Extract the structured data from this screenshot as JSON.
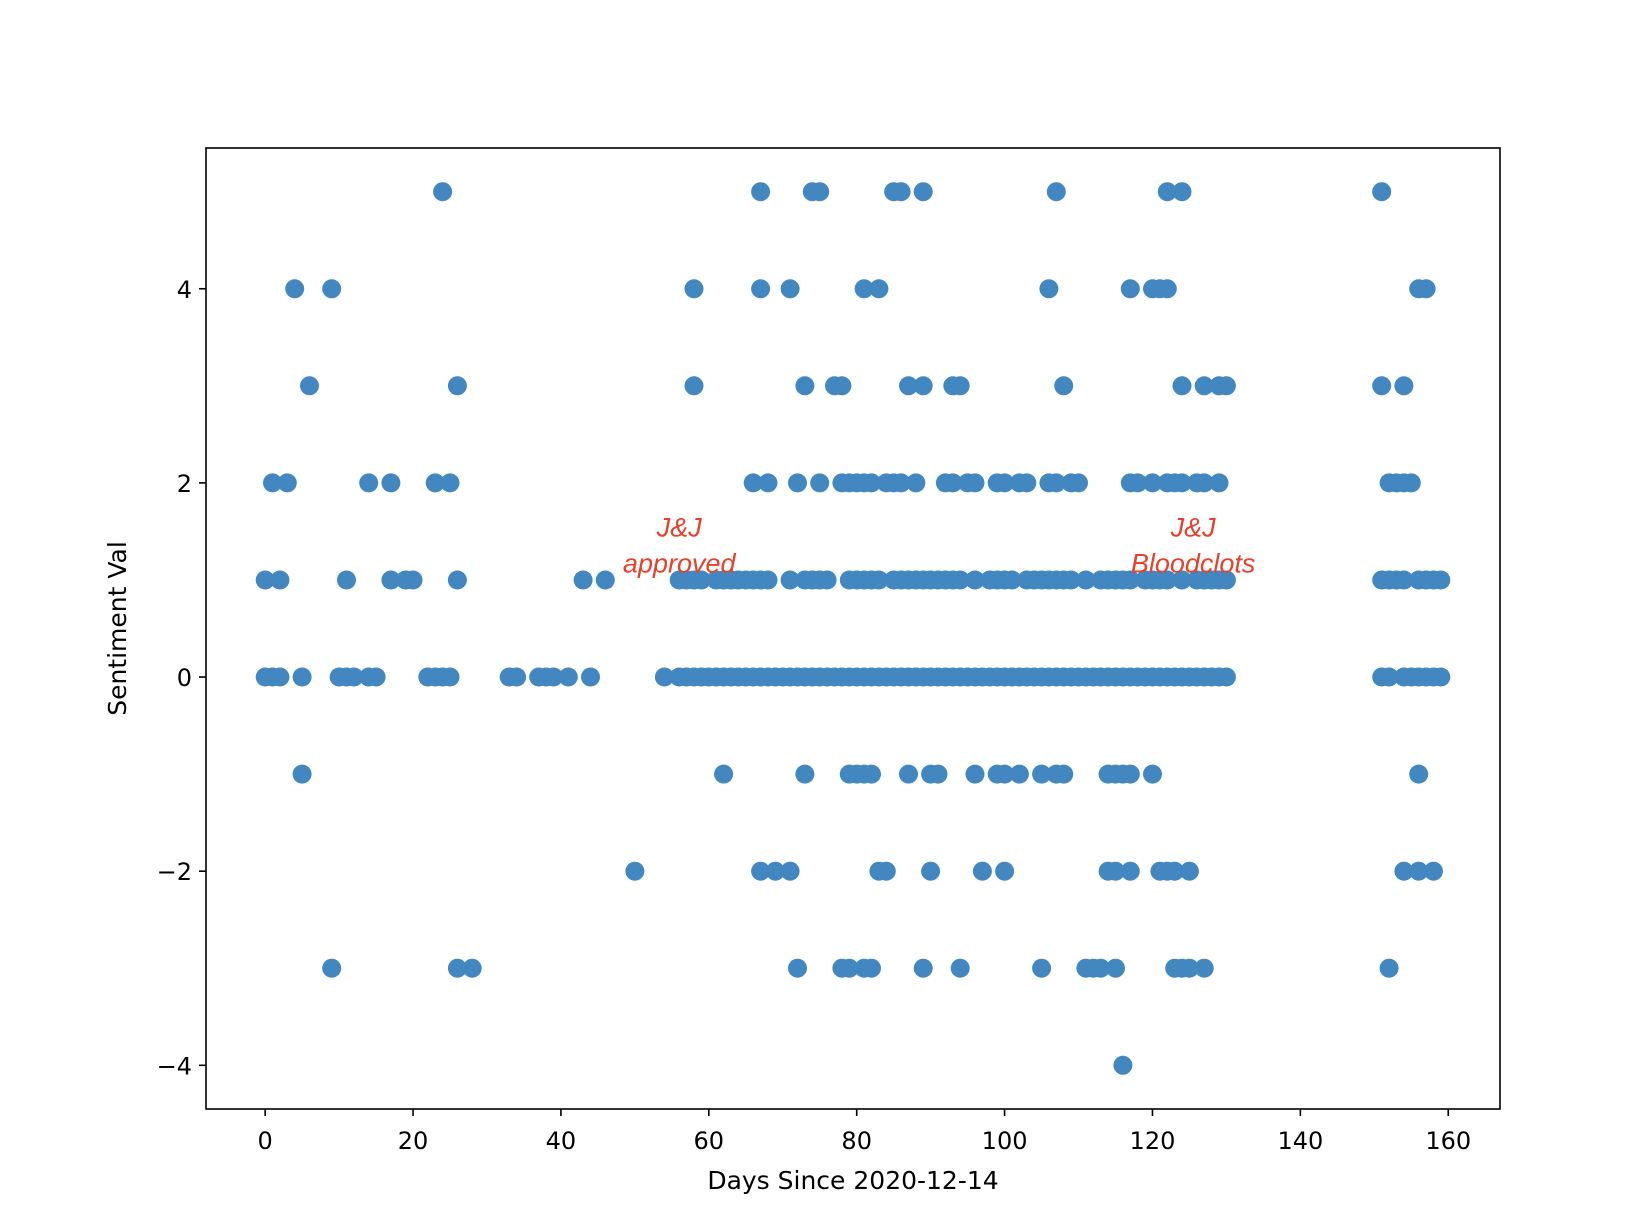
{
  "chart_data": {
    "type": "scatter",
    "title": "",
    "xlabel": "Days Since 2020-12-14",
    "ylabel": "Sentiment Val",
    "xlim": [
      -8,
      167
    ],
    "ylim": [
      -4.45,
      5.45
    ],
    "xticks": [
      0,
      20,
      40,
      60,
      80,
      100,
      120,
      140,
      160
    ],
    "xtick_labels": [
      "0",
      "20",
      "40",
      "60",
      "80",
      "100",
      "120",
      "140",
      "160"
    ],
    "yticks": [
      -4,
      -2,
      0,
      2,
      4
    ],
    "ytick_labels": [
      "−4",
      "−2",
      "0",
      "2",
      "4"
    ],
    "grid": false,
    "marker_color": "#4287c0",
    "annotation_color": "#e8402a",
    "annotations": [
      {
        "lines": [
          "J&J",
          "approved"
        ],
        "x": 56,
        "y": 1.45
      },
      {
        "lines": [
          "J&J",
          "Bloodclots"
        ],
        "x": 125.5,
        "y": 1.45
      }
    ],
    "points": [
      [
        24,
        5
      ],
      [
        67,
        5
      ],
      [
        74,
        5
      ],
      [
        75,
        5
      ],
      [
        85,
        5
      ],
      [
        86,
        5
      ],
      [
        89,
        5
      ],
      [
        107,
        5
      ],
      [
        122,
        5
      ],
      [
        124,
        5
      ],
      [
        151,
        5
      ],
      [
        4,
        4
      ],
      [
        9,
        4
      ],
      [
        58,
        4
      ],
      [
        67,
        4
      ],
      [
        71,
        4
      ],
      [
        81,
        4
      ],
      [
        83,
        4
      ],
      [
        106,
        4
      ],
      [
        117,
        4
      ],
      [
        120,
        4
      ],
      [
        121,
        4
      ],
      [
        122,
        4
      ],
      [
        156,
        4
      ],
      [
        157,
        4
      ],
      [
        6,
        3
      ],
      [
        26,
        3
      ],
      [
        58,
        3
      ],
      [
        73,
        3
      ],
      [
        77,
        3
      ],
      [
        78,
        3
      ],
      [
        87,
        3
      ],
      [
        89,
        3
      ],
      [
        93,
        3
      ],
      [
        94,
        3
      ],
      [
        108,
        3
      ],
      [
        124,
        3
      ],
      [
        127,
        3
      ],
      [
        129,
        3
      ],
      [
        130,
        3
      ],
      [
        151,
        3
      ],
      [
        154,
        3
      ],
      [
        1,
        2
      ],
      [
        3,
        2
      ],
      [
        14,
        2
      ],
      [
        17,
        2
      ],
      [
        23,
        2
      ],
      [
        25,
        2
      ],
      [
        66,
        2
      ],
      [
        68,
        2
      ],
      [
        72,
        2
      ],
      [
        75,
        2
      ],
      [
        78,
        2
      ],
      [
        79,
        2
      ],
      [
        80,
        2
      ],
      [
        81,
        2
      ],
      [
        82,
        2
      ],
      [
        84,
        2
      ],
      [
        85,
        2
      ],
      [
        86,
        2
      ],
      [
        88,
        2
      ],
      [
        92,
        2
      ],
      [
        93,
        2
      ],
      [
        95,
        2
      ],
      [
        96,
        2
      ],
      [
        99,
        2
      ],
      [
        100,
        2
      ],
      [
        102,
        2
      ],
      [
        103,
        2
      ],
      [
        106,
        2
      ],
      [
        107,
        2
      ],
      [
        109,
        2
      ],
      [
        110,
        2
      ],
      [
        117,
        2
      ],
      [
        118,
        2
      ],
      [
        120,
        2
      ],
      [
        122,
        2
      ],
      [
        123,
        2
      ],
      [
        124,
        2
      ],
      [
        126,
        2
      ],
      [
        127,
        2
      ],
      [
        129,
        2
      ],
      [
        152,
        2
      ],
      [
        153,
        2
      ],
      [
        154,
        2
      ],
      [
        155,
        2
      ],
      [
        0,
        1
      ],
      [
        2,
        1
      ],
      [
        11,
        1
      ],
      [
        17,
        1
      ],
      [
        19,
        1
      ],
      [
        20,
        1
      ],
      [
        26,
        1
      ],
      [
        43,
        1
      ],
      [
        46,
        1
      ],
      [
        56,
        1
      ],
      [
        57,
        1
      ],
      [
        58,
        1
      ],
      [
        59,
        1
      ],
      [
        61,
        1
      ],
      [
        62,
        1
      ],
      [
        63,
        1
      ],
      [
        64,
        1
      ],
      [
        65,
        1
      ],
      [
        66,
        1
      ],
      [
        67,
        1
      ],
      [
        68,
        1
      ],
      [
        71,
        1
      ],
      [
        73,
        1
      ],
      [
        74,
        1
      ],
      [
        75,
        1
      ],
      [
        76,
        1
      ],
      [
        79,
        1
      ],
      [
        80,
        1
      ],
      [
        81,
        1
      ],
      [
        82,
        1
      ],
      [
        83,
        1
      ],
      [
        85,
        1
      ],
      [
        86,
        1
      ],
      [
        87,
        1
      ],
      [
        88,
        1
      ],
      [
        89,
        1
      ],
      [
        90,
        1
      ],
      [
        91,
        1
      ],
      [
        92,
        1
      ],
      [
        93,
        1
      ],
      [
        94,
        1
      ],
      [
        96,
        1
      ],
      [
        98,
        1
      ],
      [
        99,
        1
      ],
      [
        100,
        1
      ],
      [
        101,
        1
      ],
      [
        103,
        1
      ],
      [
        104,
        1
      ],
      [
        105,
        1
      ],
      [
        106,
        1
      ],
      [
        107,
        1
      ],
      [
        108,
        1
      ],
      [
        109,
        1
      ],
      [
        111,
        1
      ],
      [
        113,
        1
      ],
      [
        114,
        1
      ],
      [
        115,
        1
      ],
      [
        116,
        1
      ],
      [
        117,
        1
      ],
      [
        119,
        1
      ],
      [
        120,
        1
      ],
      [
        121,
        1
      ],
      [
        122,
        1
      ],
      [
        124,
        1
      ],
      [
        126,
        1
      ],
      [
        127,
        1
      ],
      [
        128,
        1
      ],
      [
        129,
        1
      ],
      [
        130,
        1
      ],
      [
        151,
        1
      ],
      [
        152,
        1
      ],
      [
        153,
        1
      ],
      [
        154,
        1
      ],
      [
        156,
        1
      ],
      [
        157,
        1
      ],
      [
        158,
        1
      ],
      [
        159,
        1
      ],
      [
        0,
        0
      ],
      [
        1,
        0
      ],
      [
        2,
        0
      ],
      [
        5,
        0
      ],
      [
        10,
        0
      ],
      [
        11,
        0
      ],
      [
        12,
        0
      ],
      [
        14,
        0
      ],
      [
        15,
        0
      ],
      [
        22,
        0
      ],
      [
        23,
        0
      ],
      [
        24,
        0
      ],
      [
        25,
        0
      ],
      [
        33,
        0
      ],
      [
        34,
        0
      ],
      [
        37,
        0
      ],
      [
        38,
        0
      ],
      [
        39,
        0
      ],
      [
        41,
        0
      ],
      [
        44,
        0
      ],
      [
        54,
        0
      ],
      [
        56,
        0
      ],
      [
        57,
        0
      ],
      [
        58,
        0
      ],
      [
        59,
        0
      ],
      [
        60,
        0
      ],
      [
        61,
        0
      ],
      [
        62,
        0
      ],
      [
        63,
        0
      ],
      [
        64,
        0
      ],
      [
        65,
        0
      ],
      [
        66,
        0
      ],
      [
        67,
        0
      ],
      [
        68,
        0
      ],
      [
        69,
        0
      ],
      [
        70,
        0
      ],
      [
        71,
        0
      ],
      [
        72,
        0
      ],
      [
        73,
        0
      ],
      [
        74,
        0
      ],
      [
        75,
        0
      ],
      [
        76,
        0
      ],
      [
        77,
        0
      ],
      [
        78,
        0
      ],
      [
        79,
        0
      ],
      [
        80,
        0
      ],
      [
        81,
        0
      ],
      [
        82,
        0
      ],
      [
        83,
        0
      ],
      [
        84,
        0
      ],
      [
        85,
        0
      ],
      [
        86,
        0
      ],
      [
        87,
        0
      ],
      [
        88,
        0
      ],
      [
        89,
        0
      ],
      [
        90,
        0
      ],
      [
        91,
        0
      ],
      [
        92,
        0
      ],
      [
        93,
        0
      ],
      [
        94,
        0
      ],
      [
        95,
        0
      ],
      [
        96,
        0
      ],
      [
        97,
        0
      ],
      [
        98,
        0
      ],
      [
        99,
        0
      ],
      [
        100,
        0
      ],
      [
        101,
        0
      ],
      [
        102,
        0
      ],
      [
        103,
        0
      ],
      [
        104,
        0
      ],
      [
        105,
        0
      ],
      [
        106,
        0
      ],
      [
        107,
        0
      ],
      [
        108,
        0
      ],
      [
        109,
        0
      ],
      [
        110,
        0
      ],
      [
        111,
        0
      ],
      [
        112,
        0
      ],
      [
        113,
        0
      ],
      [
        114,
        0
      ],
      [
        115,
        0
      ],
      [
        116,
        0
      ],
      [
        117,
        0
      ],
      [
        118,
        0
      ],
      [
        119,
        0
      ],
      [
        120,
        0
      ],
      [
        121,
        0
      ],
      [
        122,
        0
      ],
      [
        123,
        0
      ],
      [
        124,
        0
      ],
      [
        125,
        0
      ],
      [
        126,
        0
      ],
      [
        127,
        0
      ],
      [
        128,
        0
      ],
      [
        129,
        0
      ],
      [
        130,
        0
      ],
      [
        151,
        0
      ],
      [
        152,
        0
      ],
      [
        154,
        0
      ],
      [
        155,
        0
      ],
      [
        156,
        0
      ],
      [
        157,
        0
      ],
      [
        158,
        0
      ],
      [
        159,
        0
      ],
      [
        5,
        -1
      ],
      [
        62,
        -1
      ],
      [
        73,
        -1
      ],
      [
        79,
        -1
      ],
      [
        80,
        -1
      ],
      [
        81,
        -1
      ],
      [
        82,
        -1
      ],
      [
        87,
        -1
      ],
      [
        90,
        -1
      ],
      [
        91,
        -1
      ],
      [
        96,
        -1
      ],
      [
        99,
        -1
      ],
      [
        100,
        -1
      ],
      [
        102,
        -1
      ],
      [
        105,
        -1
      ],
      [
        107,
        -1
      ],
      [
        108,
        -1
      ],
      [
        114,
        -1
      ],
      [
        115,
        -1
      ],
      [
        116,
        -1
      ],
      [
        117,
        -1
      ],
      [
        120,
        -1
      ],
      [
        156,
        -1
      ],
      [
        50,
        -2
      ],
      [
        67,
        -2
      ],
      [
        69,
        -2
      ],
      [
        71,
        -2
      ],
      [
        83,
        -2
      ],
      [
        84,
        -2
      ],
      [
        90,
        -2
      ],
      [
        97,
        -2
      ],
      [
        100,
        -2
      ],
      [
        114,
        -2
      ],
      [
        115,
        -2
      ],
      [
        117,
        -2
      ],
      [
        121,
        -2
      ],
      [
        122,
        -2
      ],
      [
        123,
        -2
      ],
      [
        125,
        -2
      ],
      [
        154,
        -2
      ],
      [
        156,
        -2
      ],
      [
        158,
        -2
      ],
      [
        9,
        -3
      ],
      [
        26,
        -3
      ],
      [
        28,
        -3
      ],
      [
        72,
        -3
      ],
      [
        78,
        -3
      ],
      [
        79,
        -3
      ],
      [
        81,
        -3
      ],
      [
        82,
        -3
      ],
      [
        89,
        -3
      ],
      [
        94,
        -3
      ],
      [
        105,
        -3
      ],
      [
        111,
        -3
      ],
      [
        112,
        -3
      ],
      [
        113,
        -3
      ],
      [
        115,
        -3
      ],
      [
        123,
        -3
      ],
      [
        124,
        -3
      ],
      [
        125,
        -3
      ],
      [
        127,
        -3
      ],
      [
        152,
        -3
      ],
      [
        116,
        -4
      ]
    ]
  }
}
